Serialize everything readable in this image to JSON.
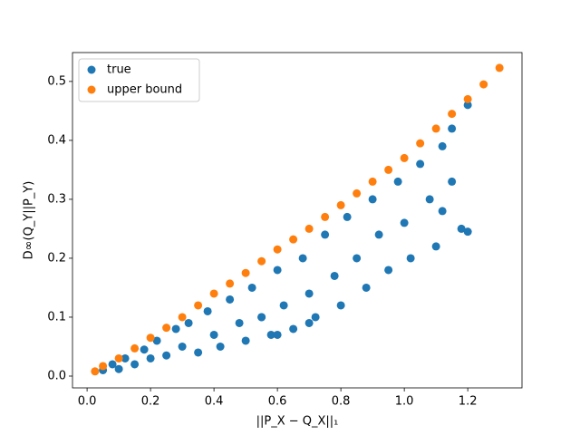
{
  "chart_data": {
    "type": "scatter",
    "xlabel": "||P_X − Q_X||₁",
    "ylabel": "D∞(Q_Y||P_Y)",
    "xlim": [
      -0.046,
      1.371
    ],
    "ylim": [
      -0.02,
      0.549
    ],
    "xticks": [
      {
        "value": 0,
        "label": "0.0"
      },
      0.2,
      0.4,
      0.6,
      0.8,
      {
        "value": 1,
        "label": "1.0"
      },
      1.2
    ],
    "yticks": [
      {
        "value": 0,
        "label": "0.0"
      },
      0.1,
      0.2,
      0.3,
      0.4,
      0.5
    ],
    "legend": "upper left",
    "series": [
      {
        "name": "true",
        "color": "#1f77b4",
        "x": [
          0.05,
          0.08,
          0.1,
          0.12,
          0.15,
          0.18,
          0.2,
          0.22,
          0.25,
          0.28,
          0.3,
          0.32,
          0.35,
          0.38,
          0.4,
          0.42,
          0.45,
          0.48,
          0.5,
          0.52,
          0.55,
          0.58,
          0.6,
          0.62,
          0.65,
          0.68,
          0.7,
          0.72,
          0.75,
          0.78,
          0.8,
          0.82,
          0.85,
          0.88,
          0.9,
          0.92,
          0.95,
          0.98,
          1.0,
          1.02,
          1.05,
          1.08,
          1.1,
          1.12,
          1.15,
          1.18,
          1.2,
          1.2,
          1.15,
          1.12,
          0.6,
          0.7,
          0.55
        ],
        "values": [
          0.01,
          0.02,
          0.012,
          0.03,
          0.02,
          0.045,
          0.03,
          0.06,
          0.035,
          0.08,
          0.05,
          0.09,
          0.04,
          0.11,
          0.07,
          0.05,
          0.13,
          0.09,
          0.06,
          0.15,
          0.1,
          0.07,
          0.18,
          0.12,
          0.08,
          0.2,
          0.14,
          0.1,
          0.24,
          0.17,
          0.12,
          0.27,
          0.2,
          0.15,
          0.3,
          0.24,
          0.18,
          0.33,
          0.26,
          0.2,
          0.36,
          0.3,
          0.22,
          0.39,
          0.33,
          0.25,
          0.46,
          0.245,
          0.42,
          0.28,
          0.07,
          0.09,
          0.1
        ]
      },
      {
        "name": "upper bound",
        "color": "#ff7f0e",
        "x": [
          0.025,
          0.05,
          0.1,
          0.15,
          0.2,
          0.25,
          0.3,
          0.35,
          0.4,
          0.45,
          0.5,
          0.55,
          0.6,
          0.65,
          0.7,
          0.75,
          0.8,
          0.85,
          0.9,
          0.95,
          1.0,
          1.05,
          1.1,
          1.15,
          1.2,
          1.25,
          1.3
        ],
        "values": [
          0.008,
          0.017,
          0.03,
          0.047,
          0.065,
          0.082,
          0.1,
          0.12,
          0.14,
          0.157,
          0.175,
          0.195,
          0.215,
          0.232,
          0.25,
          0.27,
          0.29,
          0.31,
          0.33,
          0.35,
          0.37,
          0.395,
          0.42,
          0.445,
          0.47,
          0.495,
          0.523
        ]
      }
    ]
  }
}
